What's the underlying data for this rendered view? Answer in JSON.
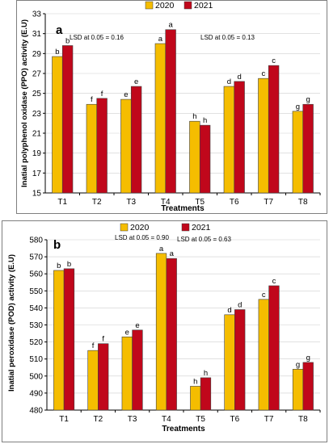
{
  "colors": {
    "y2020": "#f5bd00",
    "y2021": "#c0071b"
  },
  "chart_data": [
    {
      "panel_label": "a",
      "type": "bar",
      "categories": [
        "T1",
        "T2",
        "T3",
        "T4",
        "T5",
        "T6",
        "T7",
        "T8"
      ],
      "series": [
        {
          "name": "2020",
          "values": [
            28.7,
            23.9,
            24.4,
            30.0,
            22.2,
            25.7,
            26.5,
            23.2
          ],
          "letters": [
            "b",
            "f",
            "e",
            "a",
            "h",
            "d",
            "c",
            "g"
          ]
        },
        {
          "name": "2021",
          "values": [
            29.8,
            24.5,
            25.7,
            31.4,
            21.8,
            26.2,
            27.8,
            23.9
          ],
          "letters": [
            "b",
            "f",
            "e",
            "a",
            "h",
            "d",
            "c",
            "g"
          ]
        }
      ],
      "annotations": [
        "LSD at 0.05 = 0.16",
        "LSD at 0.05 = 0.13"
      ],
      "xlabel": "Treatments",
      "ylabel": "Inatial polyphenol oxidase (PPO) activity (E.U)",
      "ylim": [
        15,
        33
      ],
      "yticks": [
        15,
        17,
        19,
        21,
        23,
        25,
        27,
        29,
        31,
        33
      ],
      "grid": true,
      "legend_position": "top-center"
    },
    {
      "panel_label": "b",
      "type": "bar",
      "categories": [
        "T1",
        "T2",
        "T3",
        "T4",
        "T5",
        "T6",
        "T7",
        "T8"
      ],
      "series": [
        {
          "name": "2020",
          "values": [
            562,
            515,
            523,
            572,
            494,
            536,
            545,
            504
          ],
          "letters": [
            "b",
            "f",
            "e",
            "a",
            "h",
            "d",
            "c",
            "g"
          ]
        },
        {
          "name": "2021",
          "values": [
            563,
            519,
            527,
            569,
            499,
            539,
            553,
            508
          ],
          "letters": [
            "b",
            "f",
            "e",
            "a",
            "h",
            "d",
            "c",
            "g"
          ]
        }
      ],
      "annotations": [
        "LSD at 0.05 = 0.90",
        "LSD at 0.05 = 0.63"
      ],
      "xlabel": "Treatments",
      "ylabel": "Inatial peroxidase (POD) activity (E.U)",
      "ylim": [
        480,
        580
      ],
      "yticks": [
        480,
        490,
        500,
        510,
        520,
        530,
        540,
        550,
        560,
        570,
        580
      ],
      "grid": true,
      "legend_position": "top-center"
    }
  ]
}
